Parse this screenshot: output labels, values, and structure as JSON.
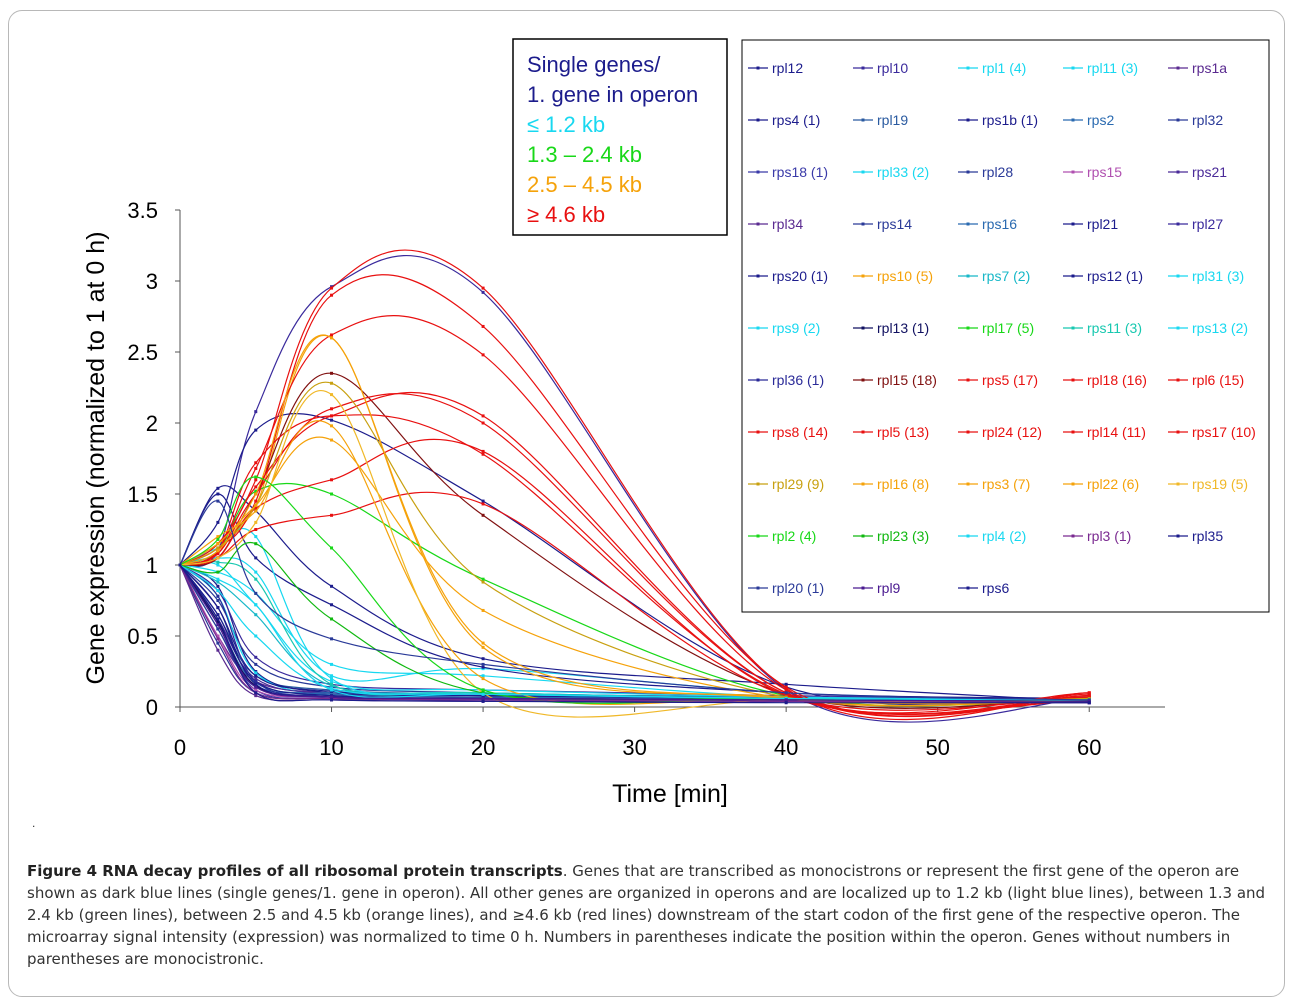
{
  "chart_data": {
    "type": "line",
    "xlabel": "Time [min]",
    "ylabel": "Gene  expression (normalized to 1 at 0 h)",
    "xlim": [
      0,
      65
    ],
    "ylim": [
      0,
      3.5
    ],
    "x_ticks": [
      "0",
      "10",
      "20",
      "30",
      "40",
      "50",
      "60"
    ],
    "y_ticks": [
      "0",
      "0.5",
      "1",
      "1.5",
      "2",
      "2.5",
      "3",
      "3.5"
    ],
    "x": [
      0,
      2.5,
      5,
      10,
      20,
      40,
      60
    ],
    "group_legend": {
      "items": [
        {
          "label": "Single genes/",
          "color": "#1c1c8c"
        },
        {
          "label": "1. gene in operon",
          "color": "#1c1c8c"
        },
        {
          "label": "≤ 1.2 kb",
          "color": "#18d8f0"
        },
        {
          "label": "1.3 – 2.4 kb",
          "color": "#18d818"
        },
        {
          "label": "2.5 – 4.5 kb",
          "color": "#f5a20a"
        },
        {
          "label": "≥ 4.6 kb",
          "color": "#e81010"
        }
      ]
    },
    "series_legend_placement": "right",
    "series": [
      {
        "name": "rpl12",
        "color": "#1c1c8c",
        "values": [
          1,
          1.54,
          1.38,
          0.85,
          0.34,
          0.16,
          0.04
        ]
      },
      {
        "name": "rpl10",
        "color": "#3a2a9c",
        "values": [
          1,
          1.1,
          2.08,
          2.96,
          2.92,
          0.12,
          0.06
        ]
      },
      {
        "name": "rpl1 (4)",
        "color": "#18d8f0",
        "values": [
          1,
          0.95,
          0.8,
          0.3,
          0.22,
          0.07,
          0.05
        ]
      },
      {
        "name": "rpl11 (3)",
        "color": "#18d8f0",
        "values": [
          1,
          1.05,
          0.95,
          0.22,
          0.27,
          0.1,
          0.05
        ]
      },
      {
        "name": "rps1a",
        "color": "#5a2a90",
        "values": [
          1,
          0.5,
          0.18,
          0.1,
          0.08,
          0.06,
          0.04
        ]
      },
      {
        "name": "rps4 (1)",
        "color": "#1c1c8c",
        "values": [
          1,
          1.5,
          1.05,
          0.72,
          0.28,
          0.1,
          0.06
        ]
      },
      {
        "name": "rpl19",
        "color": "#2a5aa0",
        "values": [
          1,
          0.65,
          0.22,
          0.12,
          0.09,
          0.07,
          0.05
        ]
      },
      {
        "name": "rps1b (1)",
        "color": "#1c1c8c",
        "values": [
          1,
          0.85,
          0.25,
          0.1,
          0.08,
          0.06,
          0.04
        ]
      },
      {
        "name": "rps2",
        "color": "#2a6ab0",
        "values": [
          1,
          0.55,
          0.15,
          0.1,
          0.09,
          0.07,
          0.05
        ]
      },
      {
        "name": "rpl32",
        "color": "#2a3a98",
        "values": [
          1,
          0.75,
          0.3,
          0.14,
          0.1,
          0.06,
          0.04
        ]
      },
      {
        "name": "rps18 (1)",
        "color": "#3a3aa8",
        "values": [
          1,
          0.58,
          0.12,
          0.06,
          0.05,
          0.04,
          0.03
        ]
      },
      {
        "name": "rpl33 (2)",
        "color": "#18d8f0",
        "values": [
          1,
          0.78,
          0.24,
          0.08,
          0.06,
          0.05,
          0.04
        ]
      },
      {
        "name": "rpl28",
        "color": "#2a3a98",
        "values": [
          1,
          0.45,
          0.1,
          0.06,
          0.05,
          0.04,
          0.03
        ]
      },
      {
        "name": "rps15",
        "color": "#b050b0",
        "values": [
          1,
          0.5,
          0.12,
          0.07,
          0.06,
          0.05,
          0.04
        ]
      },
      {
        "name": "rps21",
        "color": "#4a2a98",
        "values": [
          1,
          0.62,
          0.2,
          0.09,
          0.07,
          0.05,
          0.04
        ]
      },
      {
        "name": "rpl34",
        "color": "#5a2a90",
        "values": [
          1,
          0.4,
          0.08,
          0.05,
          0.04,
          0.04,
          0.03
        ]
      },
      {
        "name": "rps14",
        "color": "#2a3a98",
        "values": [
          1,
          0.55,
          0.14,
          0.08,
          0.06,
          0.05,
          0.04
        ]
      },
      {
        "name": "rps16",
        "color": "#2a6ab0",
        "values": [
          1,
          0.6,
          0.17,
          0.09,
          0.07,
          0.06,
          0.05
        ]
      },
      {
        "name": "rpl21",
        "color": "#1c1c8c",
        "values": [
          1,
          1.3,
          1.95,
          2.02,
          1.45,
          0.14,
          0.06
        ]
      },
      {
        "name": "rpl27",
        "color": "#3a2a9c",
        "values": [
          1,
          0.82,
          0.35,
          0.16,
          0.12,
          0.08,
          0.05
        ]
      },
      {
        "name": "rps20 (1)",
        "color": "#1c1c8c",
        "values": [
          1,
          0.7,
          0.22,
          0.11,
          0.08,
          0.06,
          0.04
        ]
      },
      {
        "name": "rps10 (5)",
        "color": "#f5a20a",
        "values": [
          1,
          1.15,
          1.42,
          2.6,
          0.42,
          0.07,
          0.05
        ]
      },
      {
        "name": "rps7 (2)",
        "color": "#18b8c8",
        "values": [
          1,
          0.88,
          0.65,
          0.15,
          0.1,
          0.06,
          0.05
        ]
      },
      {
        "name": "rps12 (1)",
        "color": "#1c1c8c",
        "values": [
          1,
          0.65,
          0.18,
          0.08,
          0.06,
          0.05,
          0.04
        ]
      },
      {
        "name": "rpl31 (3)",
        "color": "#18d8f0",
        "values": [
          1,
          1.0,
          0.72,
          0.18,
          0.12,
          0.07,
          0.05
        ]
      },
      {
        "name": "rps9 (2)",
        "color": "#18d8f0",
        "values": [
          1,
          1.12,
          1.2,
          0.2,
          0.1,
          0.06,
          0.04
        ]
      },
      {
        "name": "rpl13 (1)",
        "color": "#101060",
        "values": [
          1,
          0.6,
          0.15,
          0.07,
          0.06,
          0.05,
          0.04
        ]
      },
      {
        "name": "rpl17 (5)",
        "color": "#18d818",
        "values": [
          1,
          1.1,
          1.52,
          1.5,
          0.9,
          0.08,
          0.05
        ]
      },
      {
        "name": "rps11 (3)",
        "color": "#18c8b0",
        "values": [
          1,
          1.02,
          0.9,
          0.16,
          0.1,
          0.06,
          0.05
        ]
      },
      {
        "name": "rps13 (2)",
        "color": "#18d8f0",
        "values": [
          1,
          0.9,
          0.72,
          0.12,
          0.09,
          0.06,
          0.05
        ]
      },
      {
        "name": "rpl36 (1)",
        "color": "#2a2a98",
        "values": [
          1,
          0.78,
          0.18,
          0.07,
          0.06,
          0.05,
          0.04
        ]
      },
      {
        "name": "rpl15 (18)",
        "color": "#801010",
        "values": [
          1,
          1.05,
          1.5,
          2.35,
          1.35,
          0.09,
          0.07
        ]
      },
      {
        "name": "rps5 (17)",
        "color": "#e81010",
        "values": [
          1,
          1.08,
          1.55,
          2.05,
          2.05,
          0.1,
          0.08
        ]
      },
      {
        "name": "rpl18 (16)",
        "color": "#e81010",
        "values": [
          1,
          1.1,
          1.68,
          2.62,
          2.48,
          0.12,
          0.08
        ]
      },
      {
        "name": "rpl6 (15)",
        "color": "#e81010",
        "values": [
          1,
          1.12,
          1.45,
          2.9,
          2.68,
          0.14,
          0.09
        ]
      },
      {
        "name": "rps8 (14)",
        "color": "#e81010",
        "values": [
          1,
          1.15,
          1.6,
          2.95,
          2.95,
          0.13,
          0.1
        ]
      },
      {
        "name": "rpl5 (13)",
        "color": "#e81010",
        "values": [
          1,
          1.05,
          1.4,
          1.6,
          1.8,
          0.08,
          0.1
        ]
      },
      {
        "name": "rpl24 (12)",
        "color": "#e81010",
        "values": [
          1,
          1.08,
          1.5,
          2.1,
          2.0,
          0.1,
          0.06
        ]
      },
      {
        "name": "rpl14 (11)",
        "color": "#e81010",
        "values": [
          1,
          1.1,
          1.72,
          2.05,
          1.78,
          0.09,
          0.05
        ]
      },
      {
        "name": "rps17 (10)",
        "color": "#e81010",
        "values": [
          1,
          1.05,
          1.25,
          1.35,
          1.43,
          0.08,
          0.07
        ]
      },
      {
        "name": "rpl29 (9)",
        "color": "#c8a010",
        "values": [
          1,
          1.12,
          1.42,
          2.28,
          0.88,
          0.07,
          0.06
        ]
      },
      {
        "name": "rpl16 (8)",
        "color": "#f5a20a",
        "values": [
          1,
          1.1,
          1.5,
          2.6,
          0.45,
          0.06,
          0.04
        ]
      },
      {
        "name": "rps3 (7)",
        "color": "#f5a20a",
        "values": [
          1,
          1.15,
          1.42,
          1.88,
          0.68,
          0.06,
          0.05
        ]
      },
      {
        "name": "rpl22 (6)",
        "color": "#f5a20a",
        "values": [
          1,
          1.2,
          1.38,
          1.98,
          0.2,
          0.06,
          0.05
        ]
      },
      {
        "name": "rps19 (5)",
        "color": "#f0b828",
        "values": [
          1,
          1.05,
          1.3,
          2.2,
          0.1,
          0.05,
          0.04
        ]
      },
      {
        "name": "rpl2 (4)",
        "color": "#18d818",
        "values": [
          1,
          1.18,
          1.62,
          1.12,
          0.12,
          0.06,
          0.05
        ]
      },
      {
        "name": "rpl23 (3)",
        "color": "#10b810",
        "values": [
          1,
          0.95,
          1.15,
          0.62,
          0.1,
          0.06,
          0.04
        ]
      },
      {
        "name": "rpl4 (2)",
        "color": "#18d8f0",
        "values": [
          1,
          0.82,
          0.5,
          0.13,
          0.09,
          0.06,
          0.05
        ]
      },
      {
        "name": "rpl3 (1)",
        "color": "#7a2a90",
        "values": [
          1,
          0.48,
          0.1,
          0.06,
          0.05,
          0.04,
          0.03
        ]
      },
      {
        "name": "rpl35",
        "color": "#1c1c8c",
        "values": [
          1,
          0.7,
          0.16,
          0.07,
          0.06,
          0.05,
          0.04
        ]
      },
      {
        "name": "rpl20 (1)",
        "color": "#2a3a98",
        "values": [
          1,
          1.45,
          0.8,
          0.48,
          0.3,
          0.1,
          0.05
        ]
      },
      {
        "name": "rpl9",
        "color": "#4a1a90",
        "values": [
          1,
          0.58,
          0.14,
          0.07,
          0.06,
          0.05,
          0.04
        ]
      },
      {
        "name": "rps6",
        "color": "#1c1c8c",
        "values": [
          1,
          0.62,
          0.1,
          0.05,
          0.04,
          0.03,
          0.03
        ]
      }
    ]
  },
  "caption": {
    "title": "Figure 4 RNA decay profiles of all ribosomal protein transcripts",
    "text": ". Genes that are transcribed as monocistrons or represent the first gene of the operon are shown as dark blue lines (single genes/1. gene in operon). All other genes are organized in operons and are localized up to 1.2 kb (light blue lines), between 1.3 and 2.4 kb (green lines), between 2.5 and 4.5 kb (orange lines), and ≥4.6 kb (red lines) downstream of the start codon of the first gene of the respective operon. The microarray signal intensity (expression) was normalized to time 0 h. Numbers in parentheses indicate the position within the operon. Genes without numbers in parentheses are monocistronic."
  },
  "stray_mark": "."
}
